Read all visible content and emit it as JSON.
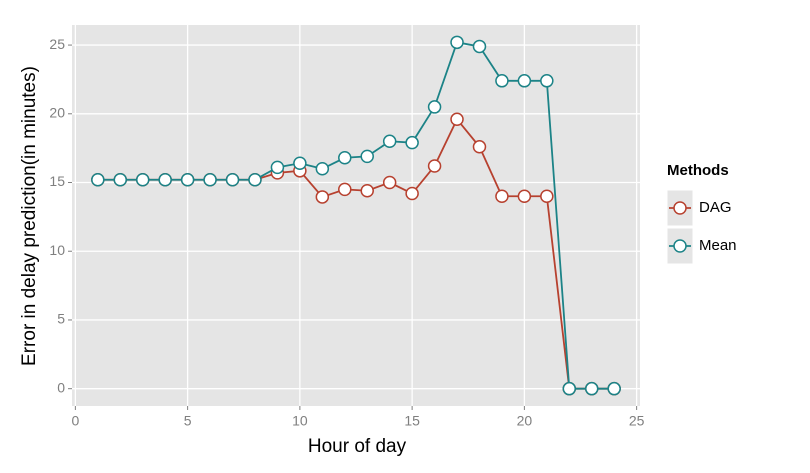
{
  "chart_data": {
    "type": "line",
    "x_label": "Hour of day",
    "y_label": "Error in delay prediction(in minutes)",
    "x": [
      1,
      2,
      3,
      4,
      5,
      6,
      7,
      8,
      9,
      10,
      11,
      12,
      13,
      14,
      15,
      16,
      17,
      18,
      19,
      20,
      21,
      22,
      23,
      24
    ],
    "series": [
      {
        "name": "DAG",
        "color": "#b7412f",
        "values": [
          15.2,
          15.2,
          15.2,
          15.2,
          15.2,
          15.2,
          15.2,
          15.2,
          15.7,
          15.85,
          13.95,
          14.5,
          14.4,
          15.0,
          14.2,
          16.2,
          19.6,
          17.6,
          14.0,
          14.0,
          14.0,
          0,
          0,
          0
        ]
      },
      {
        "name": "Mean",
        "color": "#1c8387",
        "values": [
          15.2,
          15.2,
          15.2,
          15.2,
          15.2,
          15.2,
          15.2,
          15.2,
          16.1,
          16.4,
          16.0,
          16.8,
          16.9,
          18.0,
          17.9,
          20.5,
          25.2,
          24.9,
          22.4,
          22.4,
          22.4,
          0,
          0,
          0
        ]
      }
    ],
    "xlim": [
      -0.15,
      25.15
    ],
    "xticks": [
      0,
      5,
      10,
      15,
      20,
      25
    ],
    "ylim": [
      -1.26,
      26.46
    ],
    "yticks": [
      0,
      5,
      10,
      15,
      20,
      25
    ],
    "grid": true,
    "legend_title": "Methods",
    "legend_position": "right"
  }
}
